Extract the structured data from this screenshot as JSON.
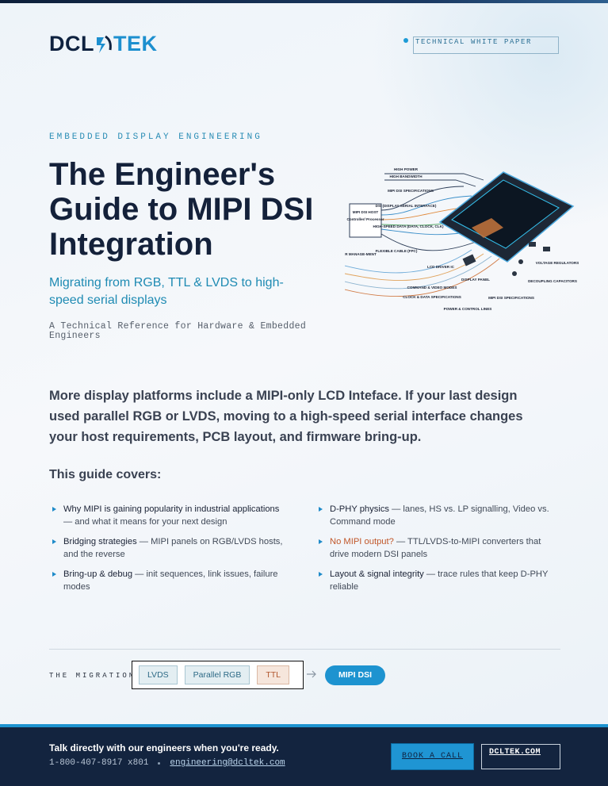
{
  "header": {
    "logo_left": "DCL",
    "logo_right": "TEK",
    "badge": "TECHNICAL WHITE PAPER"
  },
  "hero": {
    "eyebrow": "EMBEDDED DISPLAY ENGINEERING",
    "title": "The Engineer's Guide to MIPI DSI Integration",
    "subtitle": "Migrating from RGB, TTL & LVDS to high-speed serial displays",
    "audience": "A Technical Reference for Hardware & Embedded Engineers"
  },
  "diagram": {
    "labels": [
      "HIGH POWER",
      "HIGH BANDWIDTH",
      "MIPI DSI SPECIFICATIONS",
      "DSI (DISPLAY SERIAL INTERFACE)",
      "HIGH-SPEED DATA (DATA, CLOCK, CLK)",
      "MIPI DSI HOST",
      "Controller/ Processor",
      "POWER MANAGE-MENT",
      "FLEXIBLE CABLE (FPC)",
      "LCD DRIVER IC",
      "COMMAND & VIDEO MODES",
      "CLOCK & DATA SPECIFICATIONS",
      "DISPLAY PANEL",
      "POWER & CONTROL LINES",
      "MIPI DSI SPECIFICATIONS",
      "VOLTAGE REGULATORS",
      "DECOUPLING CAPACITORS"
    ]
  },
  "intro": "More display platforms include a MIPI-only LCD Inteface. If your last design used parallel RGB or LVDS, moving to a high-speed serial interface changes your host requirements, PCB layout, and firmware bring-up.",
  "covers": {
    "heading": "This guide covers:",
    "columns": [
      {
        "items": [
          {
            "lead": "Why MIPI is gaining popularity in industrial applications",
            "text": " — and what it means for your next design"
          },
          {
            "lead": "Bridging strategies",
            "text": " — MIPI panels on RGB/LVDS hosts, and the reverse"
          },
          {
            "lead": "Bring-up & debug",
            "text": " — init sequences, link issues, failure modes"
          }
        ]
      },
      {
        "items": [
          {
            "lead": "D-PHY physics",
            "text": " — lanes, HS vs. LP signalling, Video vs. Command mode"
          },
          {
            "lead": "No MIPI output?",
            "text": " — TTL/LVDS-to-MIPI converters that drive modern DSI panels"
          },
          {
            "lead": "Layout & signal integrity",
            "text": " — trace rules that keep D-PHY reliable"
          }
        ]
      }
    ]
  },
  "migration": {
    "label": "THE MIGRATION",
    "from": [
      "LVDS",
      "Parallel RGB",
      "TTL"
    ],
    "to": "MIPI DSI"
  },
  "footer": {
    "cta": "Talk directly with our engineers when you're ready.",
    "phone": "1-800-407-8917 x801",
    "email": "engineering@dcltek.com",
    "button": "BOOK A CALL",
    "link": "DCLTEK.COM"
  }
}
